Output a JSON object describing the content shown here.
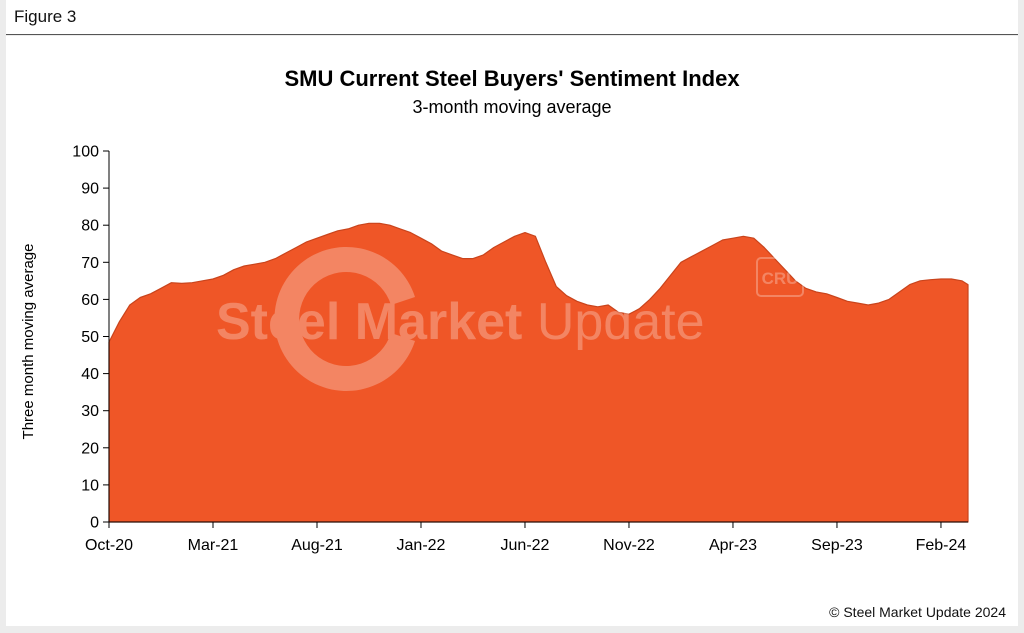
{
  "figure_label": "Figure 3",
  "footer": "© Steel Market Update 2024",
  "watermark": {
    "text_bold": "Steel Market",
    "text_light": "Update",
    "badge": "CRU"
  },
  "colors": {
    "fill": "#ef5627",
    "edge": "#c9441c",
    "axis": "#000000"
  },
  "chart_data": {
    "type": "area",
    "title": "SMU Current Steel Buyers' Sentiment Index",
    "subtitle": "3-month moving average",
    "xlabel": "",
    "ylabel": "Three month moving average",
    "ylim": [
      0,
      100
    ],
    "yticks": [
      0,
      10,
      20,
      30,
      40,
      50,
      60,
      70,
      80,
      90,
      100
    ],
    "x_tick_labels": [
      "Oct-20",
      "Mar-21",
      "Aug-21",
      "Jan-22",
      "Jun-22",
      "Nov-22",
      "Apr-23",
      "Sep-23",
      "Feb-24"
    ],
    "x_tick_months": [
      0,
      5,
      10,
      15,
      20,
      25,
      30,
      35,
      40
    ],
    "x_range_months": [
      0,
      41.3
    ],
    "series": [
      {
        "name": "Three month moving average",
        "points": [
          [
            0,
            48.5
          ],
          [
            0.5,
            54
          ],
          [
            1,
            58.5
          ],
          [
            1.5,
            60.5
          ],
          [
            2,
            61.5
          ],
          [
            2.5,
            63
          ],
          [
            3,
            64.5
          ],
          [
            3.5,
            64.3
          ],
          [
            4,
            64.5
          ],
          [
            4.5,
            65
          ],
          [
            5,
            65.5
          ],
          [
            5.5,
            66.5
          ],
          [
            6,
            68
          ],
          [
            6.5,
            69
          ],
          [
            7,
            69.5
          ],
          [
            7.5,
            70
          ],
          [
            8,
            71
          ],
          [
            8.5,
            72.5
          ],
          [
            9,
            74
          ],
          [
            9.5,
            75.5
          ],
          [
            10,
            76.5
          ],
          [
            10.5,
            77.5
          ],
          [
            11,
            78.5
          ],
          [
            11.5,
            79
          ],
          [
            12,
            80
          ],
          [
            12.5,
            80.5
          ],
          [
            13,
            80.5
          ],
          [
            13.5,
            80
          ],
          [
            14,
            79
          ],
          [
            14.5,
            78
          ],
          [
            15,
            76.5
          ],
          [
            15.5,
            75
          ],
          [
            16,
            73
          ],
          [
            16.5,
            72
          ],
          [
            17,
            71
          ],
          [
            17.5,
            71
          ],
          [
            18,
            72
          ],
          [
            18.5,
            74
          ],
          [
            19,
            75.5
          ],
          [
            19.5,
            77
          ],
          [
            20,
            78
          ],
          [
            20.5,
            77
          ],
          [
            21,
            70
          ],
          [
            21.5,
            63.5
          ],
          [
            22,
            61
          ],
          [
            22.5,
            59.5
          ],
          [
            23,
            58.5
          ],
          [
            23.5,
            58
          ],
          [
            24,
            58.5
          ],
          [
            24.5,
            56.5
          ],
          [
            25,
            56
          ],
          [
            25.5,
            57.5
          ],
          [
            26,
            60
          ],
          [
            26.5,
            63
          ],
          [
            27,
            66.5
          ],
          [
            27.5,
            70
          ],
          [
            28,
            71.5
          ],
          [
            28.5,
            73
          ],
          [
            29,
            74.5
          ],
          [
            29.5,
            76
          ],
          [
            30,
            76.5
          ],
          [
            30.5,
            77
          ],
          [
            31,
            76.5
          ],
          [
            31.5,
            74
          ],
          [
            32,
            71
          ],
          [
            32.5,
            68
          ],
          [
            33,
            65
          ],
          [
            33.5,
            63
          ],
          [
            34,
            62
          ],
          [
            34.5,
            61.5
          ],
          [
            35,
            60.5
          ],
          [
            35.5,
            59.5
          ],
          [
            36,
            59
          ],
          [
            36.5,
            58.5
          ],
          [
            37,
            59
          ],
          [
            37.5,
            60
          ],
          [
            38,
            62
          ],
          [
            38.5,
            64
          ],
          [
            39,
            65
          ],
          [
            39.5,
            65.3
          ],
          [
            40,
            65.5
          ],
          [
            40.5,
            65.5
          ],
          [
            41,
            65
          ],
          [
            41.3,
            64
          ]
        ]
      }
    ]
  }
}
